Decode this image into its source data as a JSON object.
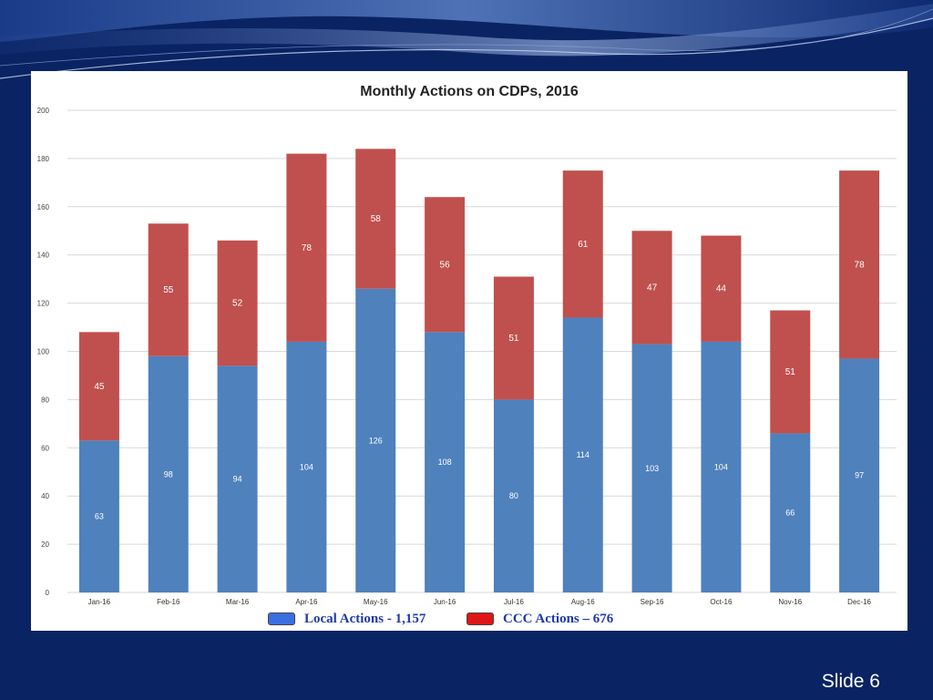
{
  "slide": {
    "number_label": "Slide 6"
  },
  "colors": {
    "background": "#0a2463",
    "local": "#4f81bd",
    "ccc": "#c0504d"
  },
  "legend": {
    "local_label": "Local Actions - 1,157",
    "ccc_label": "CCC Actions – 676",
    "local_swatch_color": "#3b6fe0",
    "ccc_swatch_color": "#e01515"
  },
  "chart_data": {
    "type": "bar",
    "stacked": true,
    "title": "Monthly Actions on CDPs, 2016",
    "xlabel": "",
    "ylabel": "",
    "categories": [
      "Jan-16",
      "Feb-16",
      "Mar-16",
      "Apr-16",
      "May-16",
      "Jun-16",
      "Jul-16",
      "Aug-16",
      "Sep-16",
      "Oct-16",
      "Nov-16",
      "Dec-16"
    ],
    "series": [
      {
        "name": "Local Actions - 1,157",
        "values": [
          63,
          98,
          94,
          104,
          126,
          108,
          80,
          114,
          103,
          104,
          66,
          97
        ]
      },
      {
        "name": "CCC Actions – 676",
        "values": [
          45,
          55,
          52,
          78,
          58,
          56,
          51,
          61,
          47,
          44,
          51,
          78
        ]
      }
    ],
    "ylim": [
      0,
      200
    ],
    "yticks": [
      0,
      20,
      40,
      60,
      80,
      100,
      120,
      140,
      160,
      180,
      200
    ],
    "grid": true,
    "legend_position": "bottom"
  }
}
